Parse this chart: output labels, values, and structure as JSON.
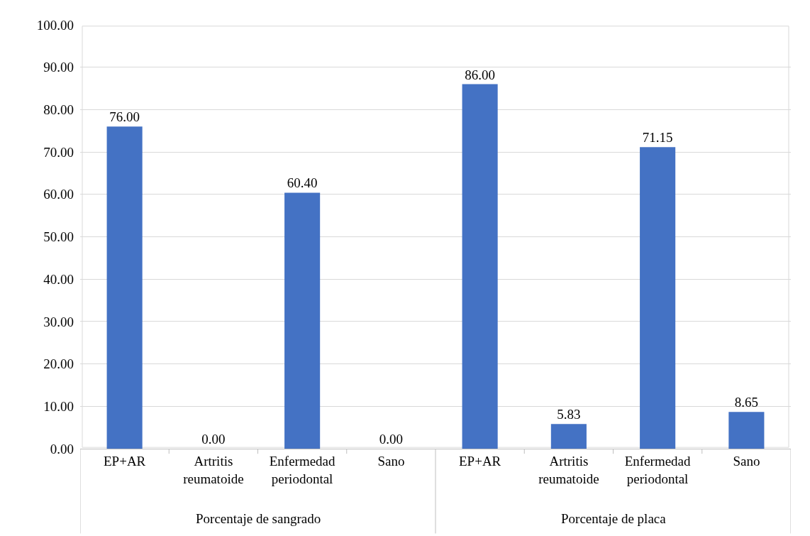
{
  "chart_data": {
    "type": "bar",
    "categories": [
      "EP+AR",
      "Artritis reumatoide",
      "Enfermedad periodontal",
      "Sano",
      "EP+AR",
      "Artritis reumatoide",
      "Enfermedad periodontal",
      "Sano"
    ],
    "values": [
      76.0,
      0.0,
      60.4,
      0.0,
      86.0,
      5.83,
      71.15,
      8.65
    ],
    "value_labels": [
      "76.00",
      "0.00",
      "60.40",
      "0.00",
      "86.00",
      "5.83",
      "71.15",
      "8.65"
    ],
    "color": "#4472c4",
    "ylim": [
      0,
      100
    ],
    "yticks": [
      {
        "value": 0,
        "label": "0.00"
      },
      {
        "value": 10,
        "label": "10.00"
      },
      {
        "value": 20,
        "label": "20.00"
      },
      {
        "value": 30,
        "label": "30.00"
      },
      {
        "value": 40,
        "label": "40.00"
      },
      {
        "value": 50,
        "label": "50.00"
      },
      {
        "value": 60,
        "label": "60.00"
      },
      {
        "value": 70,
        "label": "70.00"
      },
      {
        "value": 80,
        "label": "80.00"
      },
      {
        "value": 90,
        "label": "90.00"
      },
      {
        "value": 100,
        "label": "100.00"
      }
    ],
    "grid": "y",
    "legend": false,
    "annotations": [
      "Porcentaje de sangrado",
      "Porcentaje de placa"
    ]
  }
}
